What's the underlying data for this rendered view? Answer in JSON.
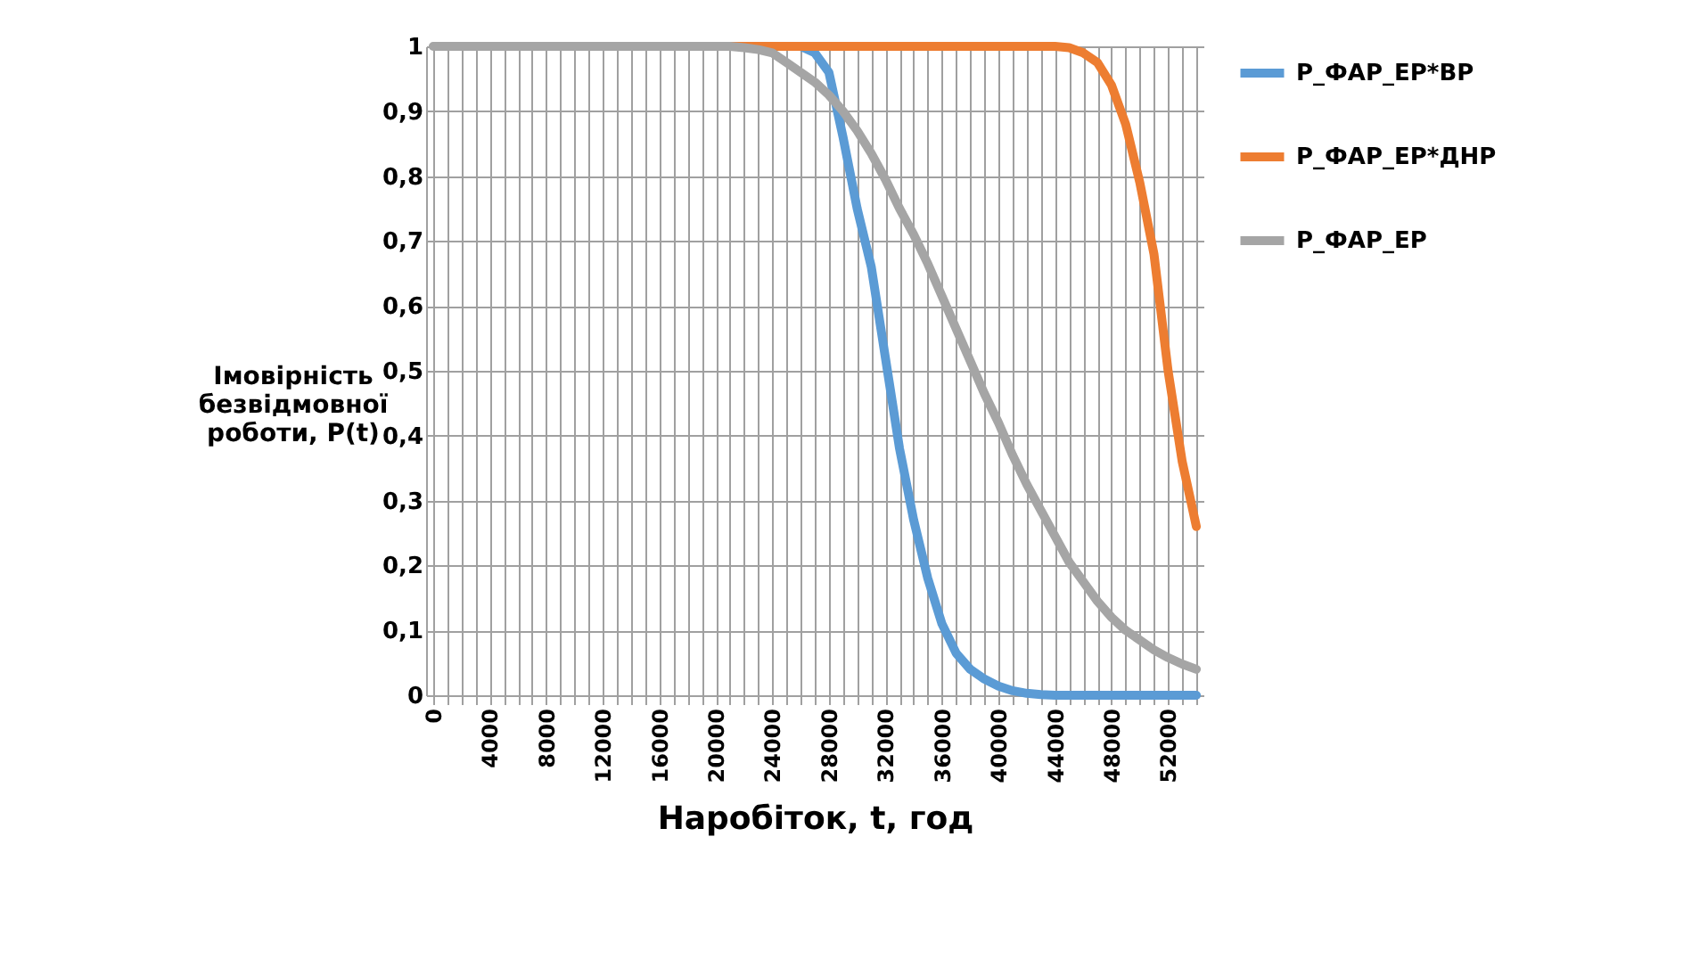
{
  "chart_data": {
    "type": "line",
    "xlabel": "Наробіток, t, год",
    "ylabel": "Імовірність безвідмовної роботи, P(t)",
    "x": [
      0,
      1000,
      2000,
      3000,
      4000,
      5000,
      6000,
      7000,
      8000,
      9000,
      10000,
      11000,
      12000,
      13000,
      14000,
      15000,
      16000,
      17000,
      18000,
      19000,
      20000,
      21000,
      22000,
      23000,
      24000,
      25000,
      26000,
      27000,
      28000,
      29000,
      30000,
      31000,
      32000,
      33000,
      34000,
      35000,
      36000,
      37000,
      38000,
      39000,
      40000,
      41000,
      42000,
      43000,
      44000,
      45000,
      46000,
      47000,
      48000,
      49000,
      50000,
      51000,
      52000,
      53000,
      54000
    ],
    "series": [
      {
        "name": "P_ФАР_ЕР*ВР",
        "color": "#5b9bd5",
        "values": [
          null,
          null,
          null,
          null,
          null,
          null,
          null,
          null,
          null,
          null,
          null,
          null,
          null,
          null,
          null,
          null,
          null,
          null,
          null,
          null,
          null,
          null,
          null,
          null,
          1,
          1,
          1,
          0.99,
          0.96,
          0.86,
          0.75,
          0.66,
          0.52,
          0.38,
          0.27,
          0.18,
          0.11,
          0.065,
          0.04,
          0.025,
          0.014,
          0.007,
          0.003,
          0.001,
          0,
          0,
          0,
          0,
          0,
          0,
          0,
          0,
          0,
          0,
          0
        ]
      },
      {
        "name": "P_ФАР_ЕР*ДНР",
        "color": "#ed7d31",
        "values": [
          null,
          null,
          null,
          null,
          null,
          null,
          null,
          null,
          null,
          null,
          null,
          null,
          null,
          null,
          null,
          null,
          null,
          null,
          null,
          null,
          null,
          1,
          1,
          1,
          1,
          1,
          1,
          1,
          1,
          1,
          1,
          1,
          1,
          1,
          1,
          1,
          1,
          1,
          1,
          1,
          1,
          1,
          1,
          1,
          1,
          0.998,
          0.99,
          0.975,
          0.94,
          0.88,
          0.79,
          0.68,
          0.5,
          0.36,
          0.26
        ]
      },
      {
        "name": "P_ФАР_ЕР",
        "color": "#a5a5a5",
        "values": [
          1,
          1,
          1,
          1,
          1,
          1,
          1,
          1,
          1,
          1,
          1,
          1,
          1,
          1,
          1,
          1,
          1,
          1,
          1,
          1,
          1,
          1,
          0.998,
          0.995,
          0.99,
          0.975,
          0.96,
          0.945,
          0.925,
          0.9,
          0.87,
          0.835,
          0.795,
          0.75,
          0.71,
          0.665,
          0.615,
          0.565,
          0.515,
          0.465,
          0.42,
          0.37,
          0.325,
          0.285,
          0.245,
          0.205,
          0.175,
          0.145,
          0.12,
          0.1,
          0.085,
          0.07,
          0.058,
          0.048,
          0.04
        ]
      }
    ],
    "xlim": [
      -500,
      54500
    ],
    "xticks": [
      0,
      {
        "value": 1000,
        "label": null
      },
      {
        "value": 2000,
        "label": null
      },
      {
        "value": 3000,
        "label": null
      },
      4000,
      {
        "value": 5000,
        "label": null
      },
      {
        "value": 6000,
        "label": null
      },
      {
        "value": 7000,
        "label": null
      },
      8000,
      {
        "value": 9000,
        "label": null
      },
      {
        "value": 10000,
        "label": null
      },
      {
        "value": 11000,
        "label": null
      },
      12000,
      {
        "value": 13000,
        "label": null
      },
      {
        "value": 14000,
        "label": null
      },
      {
        "value": 15000,
        "label": null
      },
      16000,
      {
        "value": 17000,
        "label": null
      },
      {
        "value": 18000,
        "label": null
      },
      {
        "value": 19000,
        "label": null
      },
      20000,
      {
        "value": 21000,
        "label": null
      },
      {
        "value": 22000,
        "label": null
      },
      {
        "value": 23000,
        "label": null
      },
      24000,
      {
        "value": 25000,
        "label": null
      },
      {
        "value": 26000,
        "label": null
      },
      {
        "value": 27000,
        "label": null
      },
      28000,
      {
        "value": 29000,
        "label": null
      },
      {
        "value": 30000,
        "label": null
      },
      {
        "value": 31000,
        "label": null
      },
      32000,
      {
        "value": 33000,
        "label": null
      },
      {
        "value": 34000,
        "label": null
      },
      {
        "value": 35000,
        "label": null
      },
      36000,
      {
        "value": 37000,
        "label": null
      },
      {
        "value": 38000,
        "label": null
      },
      {
        "value": 39000,
        "label": null
      },
      40000,
      {
        "value": 41000,
        "label": null
      },
      {
        "value": 42000,
        "label": null
      },
      {
        "value": 43000,
        "label": null
      },
      44000,
      {
        "value": 45000,
        "label": null
      },
      {
        "value": 46000,
        "label": null
      },
      {
        "value": 47000,
        "label": null
      },
      48000,
      {
        "value": 49000,
        "label": null
      },
      {
        "value": 50000,
        "label": null
      },
      {
        "value": 51000,
        "label": null
      },
      52000,
      {
        "value": 53000,
        "label": null
      },
      {
        "value": 54000,
        "label": null
      }
    ],
    "ylim": [
      0,
      1
    ],
    "yticks": [
      0,
      {
        "value": 0.1,
        "label": "0,1"
      },
      {
        "value": 0.2,
        "label": "0,2"
      },
      {
        "value": 0.3,
        "label": "0,3"
      },
      {
        "value": 0.4,
        "label": "0,4"
      },
      {
        "value": 0.5,
        "label": "0,5"
      },
      {
        "value": 0.6,
        "label": "0,6"
      },
      {
        "value": 0.7,
        "label": "0,7"
      },
      {
        "value": 0.8,
        "label": "0,8"
      },
      {
        "value": 0.9,
        "label": "0,9"
      },
      1
    ],
    "grid": true,
    "legend": "right",
    "marker": "none",
    "line_style": "solid"
  }
}
